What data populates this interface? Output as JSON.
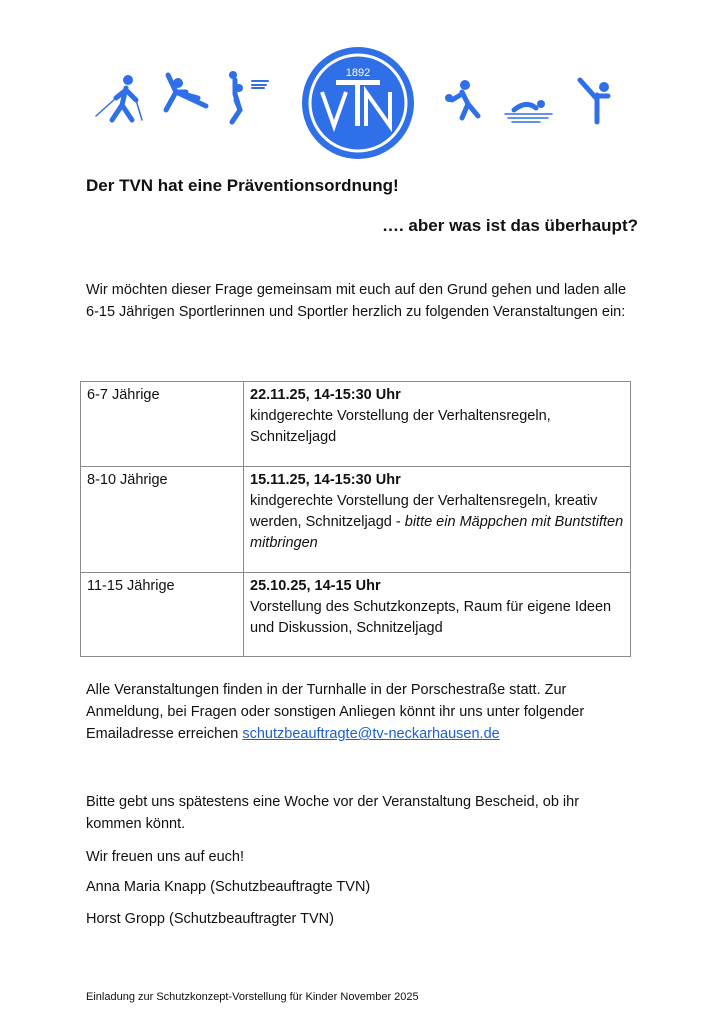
{
  "header": {
    "logo": {
      "year": "1892",
      "letters": "VTN",
      "color": "#2f6fe8"
    },
    "icons": [
      "nordic-walking-icon",
      "gymnastics-icon",
      "basketball-icon",
      "volleyball-icon",
      "swimming-icon",
      "karate-icon"
    ]
  },
  "title": "Der TVN hat eine Präventionsordnung!",
  "subtitle": "…. aber was ist das überhaupt?",
  "intro": "Wir möchten dieser Frage gemeinsam mit euch auf den Grund gehen und laden alle 6-15 Jährigen Sportlerinnen und Sportler herzlich zu folgenden Veranstaltungen ein:",
  "events": [
    {
      "age": "6-7 Jährige",
      "date": "22.11.25, 14-15:30 Uhr",
      "desc": "kindgerechte Vorstellung der Verhaltensregeln, Schnitzeljagd",
      "note": ""
    },
    {
      "age": "8-10 Jährige",
      "date": "15.11.25, 14-15:30 Uhr",
      "desc": "kindgerechte Vorstellung der Verhaltensregeln, kreativ werden, Schnitzeljagd - ",
      "note": "bitte ein Mäppchen mit Buntstiften mitbringen"
    },
    {
      "age": "11-15 Jährige",
      "date": "25.10.25, 14-15 Uhr",
      "desc": "Vorstellung des Schutzkonzepts, Raum für eigene Ideen und Diskussion, Schnitzeljagd",
      "note": ""
    }
  ],
  "location_text": "Alle Veranstaltungen finden in der Turnhalle in der Porschestraße statt. Zur Anmeldung, bei Fragen oder sonstigen Anliegen könnt ihr uns unter folgender Emailadresse erreichen ",
  "email": "schutzbeauftragte@tv-neckarhausen.de",
  "rsvp": "Bitte gebt uns spätestens eine Woche vor der Veranstaltung Bescheid, ob ihr kommen könnt.",
  "closing": "Wir freuen uns auf euch!",
  "signatures": [
    "Anna Maria Knapp (Schutzbeauftragte TVN)",
    "Horst Gropp (Schutzbeauftragter TVN)"
  ],
  "footer": "Einladung zur Schutzkonzept-Vorstellung für Kinder November 2025"
}
